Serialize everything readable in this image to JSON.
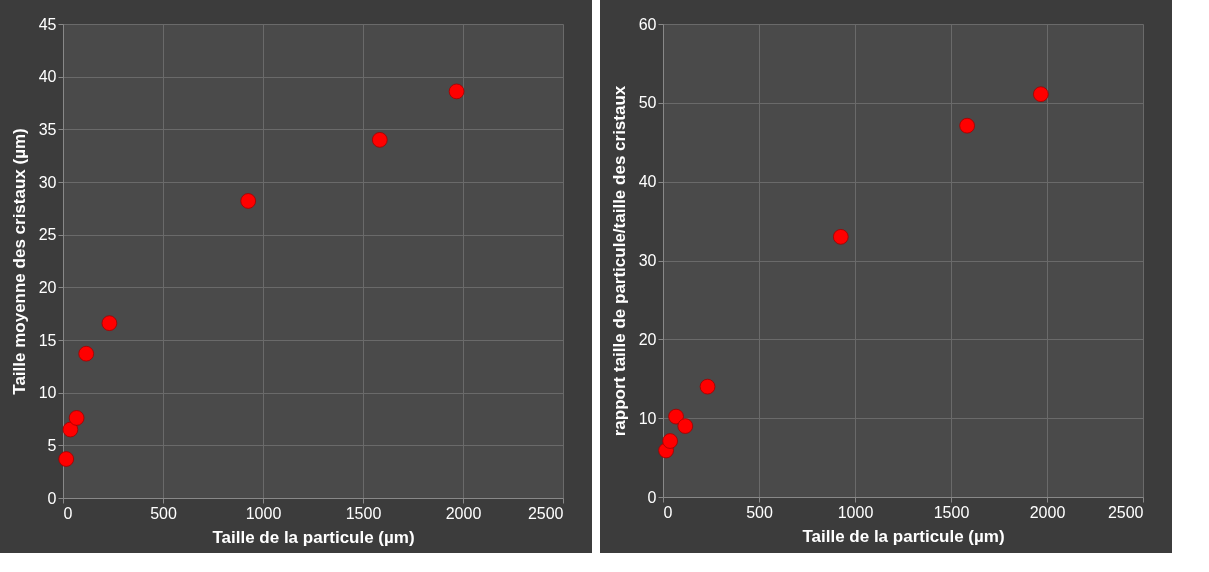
{
  "chart_data": [
    {
      "type": "scatter",
      "xlabel": "Taille de la particule (µm)",
      "ylabel": "Taille moyenne des cristaux (µm)",
      "x": [
        16,
        37,
        68,
        116,
        232,
        926,
        1584,
        1968
      ],
      "series": [
        {
          "color": "#ff0000",
          "values": [
            3.7,
            6.5,
            7.6,
            13.7,
            16.6,
            28.2,
            34.0,
            38.6
          ]
        }
      ],
      "xlim": [
        0,
        2500
      ],
      "xticks": [
        0,
        500,
        1000,
        1500,
        2000,
        2500
      ],
      "ylim": [
        0,
        45
      ],
      "yticks": [
        0,
        5,
        10,
        15,
        20,
        25,
        30,
        35,
        40,
        45
      ],
      "grid": true,
      "marker": "circle"
    },
    {
      "type": "scatter",
      "xlabel": "Taille de la particule (µm)",
      "ylabel": "rapport taille de particule/taille des cristaux",
      "x": [
        16,
        37,
        68,
        116,
        232,
        926,
        1584,
        1968
      ],
      "series": [
        {
          "color": "#ff0000",
          "values": [
            5.9,
            7.1,
            10.2,
            9.0,
            14.0,
            33.0,
            47.1,
            51.1
          ]
        }
      ],
      "xlim": [
        0,
        2500
      ],
      "xticks": [
        0,
        500,
        1000,
        1500,
        2000,
        2500
      ],
      "ylim": [
        0,
        60
      ],
      "yticks": [
        0,
        10,
        20,
        30,
        40,
        50,
        60
      ],
      "grid": true,
      "marker": "circle"
    }
  ]
}
